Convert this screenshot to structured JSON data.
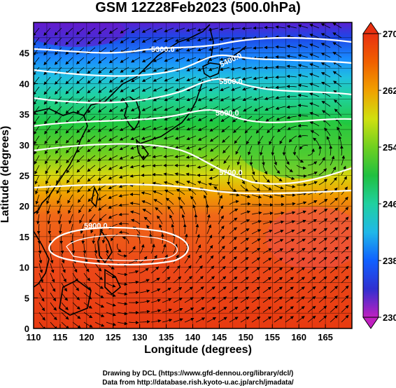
{
  "title": "GSM 12Z28Feb2023 (500.0hPa)",
  "xlabel": "Longitude (degrees)",
  "ylabel": "Latitude  (degrees)",
  "credit_line1": "Drawing by DCL (https://www.gfd-dennou.org/library/dcl/)",
  "credit_line2": "Data from http://database.rish.kyoto-u.ac.jp/arch/jmadata/",
  "x_ticks": [
    "110",
    "115",
    "120",
    "125",
    "130",
    "135",
    "140",
    "145",
    "150",
    "155",
    "160",
    "165"
  ],
  "y_ticks": [
    "0",
    "5",
    "10",
    "15",
    "20",
    "25",
    "30",
    "35",
    "40",
    "45"
  ],
  "colorbar_labels": [
    "270",
    "262",
    "254",
    "246",
    "238",
    "230"
  ],
  "contour_labels": [
    "5300.0",
    "5400.0",
    "5500.0",
    "5600.0",
    "5700.0",
    "5900.0"
  ],
  "colors": {
    "colorbar": [
      "#c020c0",
      "#3030d0",
      "#1060ff",
      "#20b8e8",
      "#20d0a0",
      "#20c040",
      "#70d020",
      "#d0e010",
      "#f0a000",
      "#f06000",
      "#e83010"
    ],
    "contour": "#ffffff",
    "coast": "#000000",
    "arrow": "#000000"
  },
  "map_data": {
    "lon_range": [
      110,
      170
    ],
    "lat_range": [
      0,
      50
    ],
    "colorbar_range": [
      230,
      270
    ],
    "variable": "temperature shading with geopotential height contours and wind streamlines"
  }
}
